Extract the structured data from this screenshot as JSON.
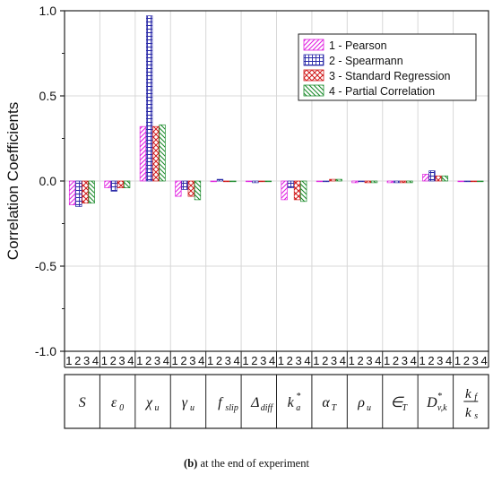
{
  "chart_data": {
    "type": "bar",
    "ylabel": "Correlation Coefficients",
    "ylim": [
      -1.0,
      1.0
    ],
    "yticks": [
      "1.0",
      "0.5",
      "0.0",
      "-0.5",
      "-1.0"
    ],
    "yticks_values": [
      1.0,
      0.5,
      0.0,
      -0.5,
      -1.0
    ],
    "grid": true,
    "legend_placement": "top-right",
    "sub_labels": [
      "1",
      "2",
      "3",
      "4"
    ],
    "categories": [
      "S",
      "ε0",
      "χu",
      "γu",
      "fslip",
      "Δdiff",
      "ka*",
      "αT",
      "ρu",
      "∈T",
      "Dv,k*",
      "kf/ks"
    ],
    "series": [
      {
        "name": "1 - Pearson",
        "pattern": "diag-up",
        "color": "#e020e0",
        "values": [
          -0.14,
          -0.04,
          0.32,
          -0.09,
          0.0,
          0.0,
          -0.11,
          0.0,
          -0.01,
          -0.01,
          0.04,
          0.0
        ]
      },
      {
        "name": "2 - Spearmann",
        "pattern": "grid",
        "color": "#2a2aa8",
        "values": [
          -0.15,
          -0.06,
          0.97,
          -0.05,
          0.01,
          -0.01,
          -0.04,
          0.0,
          0.0,
          -0.01,
          0.06,
          0.0
        ]
      },
      {
        "name": "3 - Standard Regression",
        "pattern": "crosshatch",
        "color": "#d01818",
        "values": [
          -0.13,
          -0.04,
          0.32,
          -0.09,
          0.0,
          0.0,
          -0.11,
          0.01,
          -0.01,
          -0.01,
          0.03,
          0.0
        ]
      },
      {
        "name": "4 - Partial Correlation",
        "pattern": "diag-down",
        "color": "#1a8a2a",
        "values": [
          -0.13,
          -0.04,
          0.33,
          -0.11,
          0.0,
          0.0,
          -0.12,
          0.01,
          -0.01,
          -0.01,
          0.03,
          0.0
        ]
      }
    ]
  },
  "caption": {
    "prefix": "(b)",
    "text": " at the end of experiment"
  }
}
